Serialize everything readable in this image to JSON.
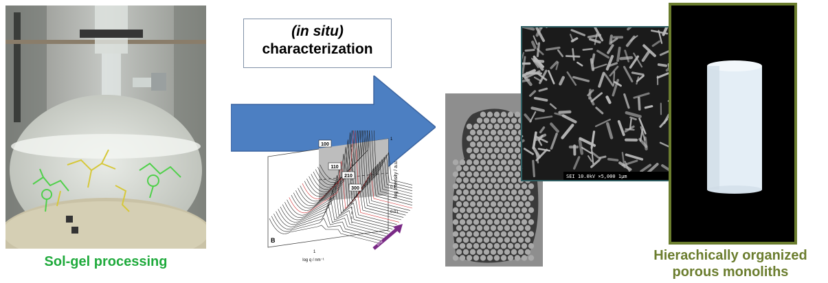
{
  "captions": {
    "left": "Sol-gel processing",
    "right_line1": "Hierachically organized",
    "right_line2": "porous monoliths"
  },
  "characterization": {
    "line1": "(in situ)",
    "line2": "characterization"
  },
  "saxs_plot": {
    "peak_labels": [
      "100",
      "110",
      "210",
      "300"
    ],
    "panel_letter": "B",
    "x_axis_label": "log q / nm⁻¹",
    "x_tick": "1",
    "y_axis_label": "log Intensity / a.u.",
    "y_ticks": [
      "1",
      "0.1",
      "0.01"
    ],
    "time_label": "time"
  },
  "sem": {
    "info_bar": "SEI   10.0kV   ×5,000     1μm"
  },
  "colors": {
    "caption_left": "#1faa3c",
    "caption_right": "#6b7d2e",
    "arrow_fill": "#4c7fc2",
    "monolith_border": "#6b7d2e",
    "sem_border": "#2e5f63",
    "time_arrow": "#7a2a86"
  }
}
